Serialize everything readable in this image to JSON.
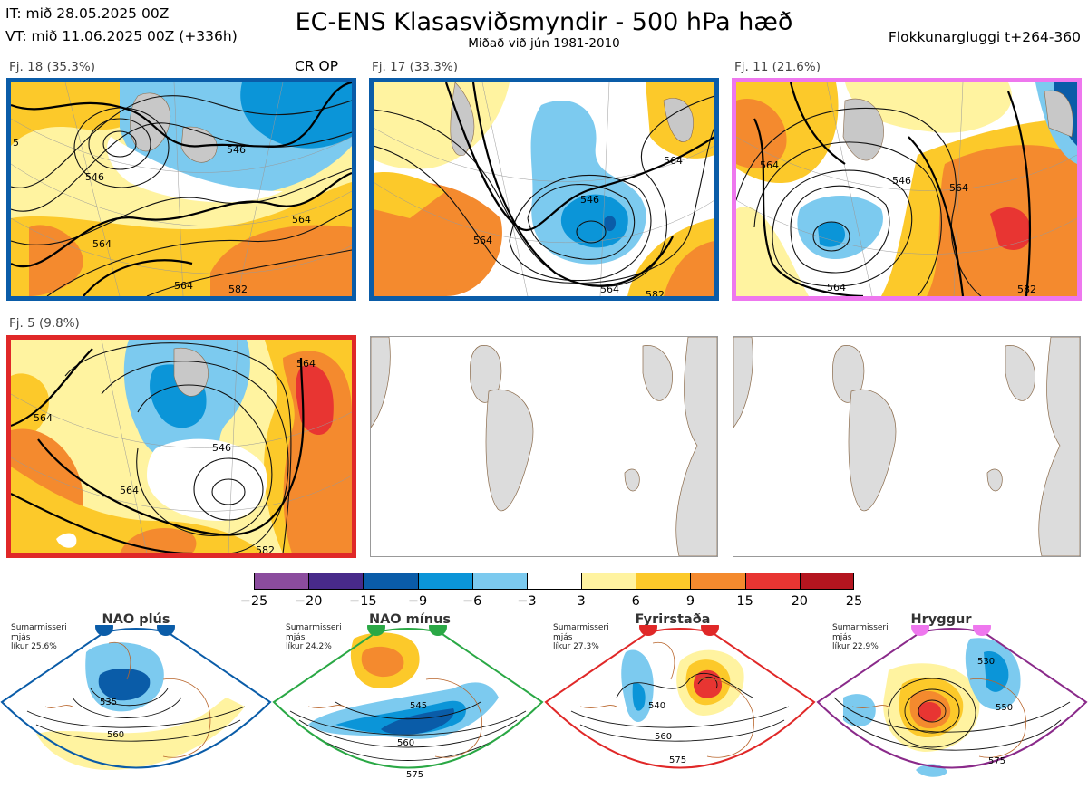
{
  "header": {
    "it_line": "IT: mið 28.05.2025 00Z",
    "vt_line": "VT: mið 11.06.2025 00Z  (+336h)",
    "title": "EC-ENS Klasasviðsmyndir - 500 hPa hæð",
    "subtitle": "Miðað við jún 1981-2010",
    "window": "Flokkunargluggi t+264-360"
  },
  "panels": [
    {
      "label": "Fj. 18 (35.3%)",
      "extra": "CR OP",
      "border": "#0a5ca8",
      "contours": [
        "546",
        "546",
        "564",
        "564",
        "564",
        "582",
        "5"
      ]
    },
    {
      "label": "Fj. 17 (33.3%)",
      "border": "#0a5ca8",
      "contours": [
        "546",
        "564",
        "564",
        "564",
        "582"
      ]
    },
    {
      "label": "Fj. 11 (21.6%)",
      "border": "#ee77ee",
      "contours": [
        "546",
        "564",
        "564",
        "564",
        "582"
      ]
    },
    {
      "label": "Fj. 5 (9.8%)",
      "border": "#e02828",
      "contours": [
        "546",
        "564",
        "564",
        "564",
        "582"
      ]
    }
  ],
  "colorbar": {
    "colors": [
      "#8b4c9e",
      "#482a8a",
      "#0a5ca8",
      "#0b95d8",
      "#7ccaef",
      "#ffffff",
      "#fff3a0",
      "#fcc92a",
      "#f48a2e",
      "#e83532",
      "#b4151f"
    ],
    "ticks": [
      "−25",
      "−20",
      "−15",
      "−9",
      "−6",
      "−3",
      "3",
      "6",
      "9",
      "15",
      "20",
      "25"
    ]
  },
  "regimes": [
    {
      "title": "NAO plús",
      "info": "Sumarmisseri\nmjás\nlíkur 25,6%",
      "color": "#0a5ca8",
      "dot": "#0a5ca8",
      "labels": [
        "535",
        "560"
      ]
    },
    {
      "title": "NAO mínus",
      "info": "Sumarmisseri\nmjás\nlíkur 24,2%",
      "color": "#2aa845",
      "dot": "#2aa845",
      "labels": [
        "545",
        "560",
        "575"
      ]
    },
    {
      "title": "Fyrirstaða",
      "info": "Sumarmisseri\nmjás\nlíkur 27,3%",
      "color": "#e02828",
      "dot": "#e02828",
      "labels": [
        "540",
        "560",
        "575"
      ]
    },
    {
      "title": "Hryggur",
      "info": "Sumarmisseri\nmjás\nlíkur 22,9%",
      "color": "#8a2a8a",
      "dot": "#ee77ee",
      "labels": [
        "530",
        "550",
        "575"
      ]
    }
  ],
  "chart_data": {
    "type": "heatmap",
    "title": "EC-ENS Klasasviðsmyndir - 500 hPa hæð",
    "subtitle": "Miðað við jún 1981-2010",
    "variable": "500 hPa height anomaly (dam) with height contours",
    "clusters": [
      {
        "name": "Fj. 18",
        "probability_pct": 35.3,
        "regime": "NAO plús",
        "note": "CR OP"
      },
      {
        "name": "Fj. 17",
        "probability_pct": 33.3,
        "regime": "NAO plús"
      },
      {
        "name": "Fj. 11",
        "probability_pct": 21.6,
        "regime": "Hryggur"
      },
      {
        "name": "Fj. 5",
        "probability_pct": 9.8,
        "regime": "Fyrirstaða"
      }
    ],
    "colorbar_ticks": [
      -25,
      -20,
      -15,
      -9,
      -6,
      -3,
      3,
      6,
      9,
      15,
      20,
      25
    ],
    "regime_probabilities_pct": {
      "NAO plús": 25.6,
      "NAO mínus": 24.2,
      "Fyrirstaða": 27.3,
      "Hryggur": 22.9
    },
    "contour_values": [
      530,
      535,
      540,
      545,
      546,
      550,
      560,
      564,
      575,
      582
    ]
  }
}
